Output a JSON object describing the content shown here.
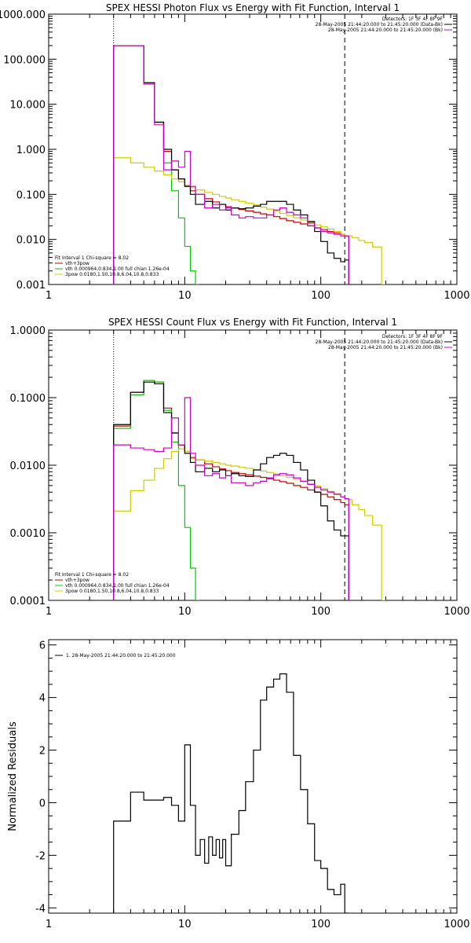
{
  "chart_data": [
    {
      "type": "line",
      "title": "SPEX HESSI Photon Flux vs Energy with Fit Function, Interval 1",
      "xscale": "log",
      "yscale": "log",
      "xlim": [
        1,
        1000
      ],
      "ylim": [
        0.001,
        1000
      ],
      "xticks": [
        1,
        10,
        100,
        1000
      ],
      "xtick_labels": [
        "1",
        "10",
        "100",
        "1000"
      ],
      "yticks": [
        0.001,
        0.01,
        0.1,
        1,
        10,
        100,
        1000
      ],
      "ytick_labels": [
        "0.001",
        "0.010",
        "0.100",
        "1.000",
        "10.000",
        "100.000",
        "1000.000"
      ],
      "vlines": [
        {
          "x": 3,
          "style": "dotted"
        },
        {
          "x": 150,
          "style": "dashed"
        }
      ],
      "header_lines": [
        {
          "text": "Detectors: 1F 3F 4F 8F 9F",
          "color": "#000000"
        },
        {
          "text": "28-May-2005 21:44:20.000 to 21:45:20.000 (Data-Bk)",
          "color": "#000000"
        },
        {
          "text": "28-May-2005 21:44:20.000 to 21:45:20.000 (Bk)",
          "color": "#cc00cc"
        }
      ],
      "legend_title": "Fit Interval 1    Chi-square = 8.02",
      "series": [
        {
          "name": "vth+3pow",
          "color": "#cc0000",
          "x": [
            3,
            4,
            5,
            6,
            7,
            8,
            9,
            10,
            11,
            12,
            14,
            16,
            18,
            20,
            22,
            25,
            28,
            32,
            36,
            40,
            45,
            50,
            56,
            63,
            71,
            80,
            90,
            100,
            112,
            125,
            140,
            150
          ],
          "y": [
            200,
            200,
            30,
            4,
            0.9,
            0.35,
            0.22,
            0.16,
            0.12,
            0.1,
            0.08,
            0.068,
            0.06,
            0.053,
            0.05,
            0.046,
            0.043,
            0.04,
            0.037,
            0.035,
            0.032,
            0.029,
            0.026,
            0.024,
            0.022,
            0.02,
            0.018,
            0.0165,
            0.015,
            0.014,
            0.013,
            0.012
          ]
        },
        {
          "name": "vth 0.000964,0.834,1.00  full chian 1.26e-04",
          "color": "#00cc00",
          "x": [
            3,
            4,
            5,
            6,
            7,
            8,
            9,
            10,
            11,
            12
          ],
          "y": [
            200,
            200,
            30,
            4,
            0.5,
            0.12,
            0.03,
            0.007,
            0.002,
            0.001
          ]
        },
        {
          "name": "3pow 0.0180,1.50,10.8,6.04,10.8,0.833",
          "color": "#cccc00",
          "x": [
            3,
            4,
            5,
            6,
            7,
            8,
            9,
            10,
            11,
            12,
            14,
            16,
            18,
            20,
            22,
            25,
            28,
            32,
            36,
            40,
            45,
            50,
            56,
            63,
            71,
            80,
            90,
            100,
            112,
            125,
            140,
            150,
            170,
            190,
            210,
            240,
            280
          ],
          "y": [
            0.65,
            0.5,
            0.4,
            0.33,
            0.27,
            0.22,
            0.19,
            0.16,
            0.14,
            0.125,
            0.11,
            0.1,
            0.09,
            0.083,
            0.076,
            0.07,
            0.064,
            0.058,
            0.052,
            0.047,
            0.042,
            0.038,
            0.034,
            0.03,
            0.027,
            0.024,
            0.021,
            0.019,
            0.017,
            0.015,
            0.013,
            0.012,
            0.011,
            0.0095,
            0.0085,
            0.0068,
            0.001
          ]
        },
        {
          "name": "Data-Bk",
          "color": "#000000",
          "x": [
            3,
            4,
            5,
            6,
            7,
            8,
            9,
            10,
            11,
            12,
            14,
            16,
            18,
            20,
            22,
            25,
            28,
            32,
            36,
            40,
            45,
            50,
            56,
            63,
            71,
            80,
            90,
            100,
            112,
            125,
            140,
            150
          ],
          "y": [
            200,
            200,
            30,
            4,
            1.0,
            0.35,
            0.22,
            0.15,
            0.1,
            0.06,
            0.07,
            0.05,
            0.06,
            0.045,
            0.05,
            0.048,
            0.05,
            0.055,
            0.06,
            0.07,
            0.07,
            0.07,
            0.06,
            0.045,
            0.035,
            0.025,
            0.015,
            0.009,
            0.005,
            0.0038,
            0.0032,
            0.0035
          ]
        },
        {
          "name": "Bk",
          "color": "#cc00cc",
          "x": [
            3,
            4,
            5,
            6,
            7,
            8,
            9,
            10,
            11,
            12,
            14,
            16,
            18,
            20,
            22,
            25,
            28,
            32,
            36,
            40,
            45,
            50,
            56,
            63,
            71,
            80,
            90,
            100,
            112,
            125,
            140,
            150
          ],
          "y": [
            200,
            200,
            28,
            3.5,
            0.35,
            0.55,
            0.4,
            0.9,
            0.15,
            0.1,
            0.05,
            0.06,
            0.045,
            0.05,
            0.035,
            0.03,
            0.032,
            0.03,
            0.03,
            0.035,
            0.045,
            0.05,
            0.04,
            0.035,
            0.03,
            0.023,
            0.018,
            0.015,
            0.014,
            0.013,
            0.012,
            0.012
          ]
        }
      ]
    },
    {
      "type": "line",
      "title": "SPEX HESSI Count Flux vs Energy with Fit Function, Interval 1",
      "xscale": "log",
      "yscale": "log",
      "xlim": [
        1,
        1000
      ],
      "ylim": [
        0.0001,
        1
      ],
      "xticks": [
        1,
        10,
        100,
        1000
      ],
      "xtick_labels": [
        "1",
        "10",
        "100",
        "1000"
      ],
      "yticks": [
        0.0001,
        0.001,
        0.01,
        0.1,
        1
      ],
      "ytick_labels": [
        "0.0001",
        "0.0010",
        "0.0100",
        "0.1000",
        "1.0000"
      ],
      "vlines": [
        {
          "x": 3,
          "style": "dotted"
        },
        {
          "x": 150,
          "style": "dashed"
        }
      ],
      "header_lines": [
        {
          "text": "Detectors: 1F 3F 4F 8F 9F",
          "color": "#000000"
        },
        {
          "text": "28-May-2005 21:44:20.000 to 21:45:20.000 (Data-Bk)",
          "color": "#000000"
        },
        {
          "text": "28-May-2005 21:44:20.000 to 21:45:20.000 (Bk)",
          "color": "#cc00cc"
        }
      ],
      "legend_title": "Fit Interval 1    Chi-square = 8.02",
      "series": [
        {
          "name": "vth+3pow",
          "color": "#cc0000",
          "x": [
            3,
            4,
            5,
            6,
            7,
            8,
            9,
            10,
            11,
            12,
            14,
            16,
            18,
            20,
            22,
            25,
            28,
            32,
            36,
            40,
            45,
            50,
            56,
            63,
            71,
            80,
            90,
            100,
            112,
            125,
            140,
            150
          ],
          "y": [
            0.038,
            0.12,
            0.18,
            0.17,
            0.07,
            0.03,
            0.02,
            0.016,
            0.013,
            0.012,
            0.0105,
            0.0095,
            0.0088,
            0.0083,
            0.0078,
            0.0075,
            0.0072,
            0.0069,
            0.0066,
            0.0063,
            0.006,
            0.0057,
            0.0054,
            0.005,
            0.0047,
            0.0043,
            0.004,
            0.0037,
            0.0034,
            0.0031,
            0.0028,
            0.0026
          ]
        },
        {
          "name": "vth 0.000964,0.834,1.00  full chian 1.26e-04",
          "color": "#00cc00",
          "x": [
            3,
            4,
            5,
            6,
            7,
            8,
            9,
            10,
            11,
            12
          ],
          "y": [
            0.035,
            0.11,
            0.18,
            0.17,
            0.065,
            0.022,
            0.005,
            0.0012,
            0.0003,
            0.0001
          ]
        },
        {
          "name": "3pow 0.0180,1.50,10.8,6.04,10.8,0.833",
          "color": "#cccc00",
          "x": [
            3,
            4,
            5,
            6,
            7,
            8,
            9,
            10,
            11,
            12,
            14,
            16,
            18,
            20,
            22,
            25,
            28,
            32,
            36,
            40,
            45,
            50,
            56,
            63,
            71,
            80,
            90,
            100,
            112,
            125,
            140,
            150,
            170,
            190,
            210,
            240,
            280
          ],
          "y": [
            0.0021,
            0.0042,
            0.006,
            0.009,
            0.0125,
            0.016,
            0.0175,
            0.016,
            0.0125,
            0.012,
            0.0115,
            0.011,
            0.0105,
            0.01,
            0.0097,
            0.0093,
            0.009,
            0.0086,
            0.0082,
            0.0078,
            0.0074,
            0.007,
            0.0066,
            0.0062,
            0.0058,
            0.0053,
            0.0049,
            0.0045,
            0.0041,
            0.0038,
            0.0034,
            0.0031,
            0.0026,
            0.0022,
            0.0018,
            0.0013,
            0.0001
          ]
        },
        {
          "name": "Data-Bk",
          "color": "#000000",
          "x": [
            3,
            4,
            5,
            6,
            7,
            8,
            9,
            10,
            11,
            12,
            14,
            16,
            18,
            20,
            22,
            25,
            28,
            32,
            36,
            40,
            45,
            50,
            56,
            63,
            71,
            80,
            90,
            100,
            112,
            125,
            140,
            150
          ],
          "y": [
            0.04,
            0.12,
            0.17,
            0.16,
            0.06,
            0.03,
            0.02,
            0.015,
            0.011,
            0.008,
            0.009,
            0.008,
            0.0085,
            0.007,
            0.0075,
            0.007,
            0.0068,
            0.0085,
            0.0105,
            0.013,
            0.014,
            0.015,
            0.014,
            0.011,
            0.0085,
            0.006,
            0.004,
            0.0025,
            0.0015,
            0.0011,
            0.0009,
            0.0009
          ]
        },
        {
          "name": "Bk",
          "color": "#cc00cc",
          "x": [
            3,
            4,
            5,
            6,
            7,
            8,
            9,
            10,
            11,
            12,
            14,
            16,
            18,
            20,
            22,
            25,
            28,
            32,
            36,
            40,
            45,
            50,
            56,
            63,
            71,
            80,
            90,
            100,
            112,
            125,
            140,
            150
          ],
          "y": [
            0.02,
            0.018,
            0.017,
            0.016,
            0.018,
            0.05,
            0.02,
            0.1,
            0.015,
            0.01,
            0.007,
            0.0075,
            0.0065,
            0.007,
            0.0055,
            0.0055,
            0.005,
            0.0055,
            0.0058,
            0.0065,
            0.0072,
            0.0075,
            0.0072,
            0.0065,
            0.0058,
            0.0052,
            0.0047,
            0.0043,
            0.004,
            0.0037,
            0.0034,
            0.0032
          ]
        }
      ]
    },
    {
      "type": "line",
      "title": "",
      "xscale": "log",
      "yscale": "linear",
      "xlim": [
        1,
        1000
      ],
      "ylim": [
        -4.2,
        6.2
      ],
      "xticks": [
        1,
        10,
        100,
        1000
      ],
      "xtick_labels": [
        "1",
        "10",
        "100",
        "1000"
      ],
      "yticks": [
        -4,
        -2,
        0,
        2,
        4,
        6
      ],
      "ytick_labels": [
        "-4",
        "-2",
        "0",
        "2",
        "4",
        "6"
      ],
      "ylabel": "Normalized Residuals",
      "legend_title": "1. 28-May-2005 21:44:20.000 to 21:45:20.000",
      "series": [
        {
          "name": "residuals",
          "color": "#000000",
          "x": [
            3,
            4,
            5,
            6,
            7,
            8,
            9,
            10,
            11,
            12,
            13,
            14,
            15,
            16,
            17,
            18,
            19,
            20,
            22,
            25,
            28,
            32,
            36,
            40,
            45,
            50,
            56,
            63,
            71,
            80,
            90,
            100,
            112,
            125,
            140,
            150
          ],
          "y": [
            -0.7,
            0.4,
            0.1,
            0.1,
            0.2,
            -0.1,
            -0.7,
            2.2,
            -0.1,
            -2.0,
            -1.4,
            -2.3,
            -1.3,
            -2.0,
            -1.4,
            -2.1,
            -1.4,
            -2.4,
            -1.2,
            -0.3,
            0.8,
            2.0,
            3.9,
            4.4,
            4.7,
            4.9,
            4.2,
            1.8,
            0.5,
            -0.8,
            -2.2,
            -2.5,
            -3.3,
            -3.5,
            -3.1,
            -4.2
          ]
        }
      ]
    }
  ]
}
